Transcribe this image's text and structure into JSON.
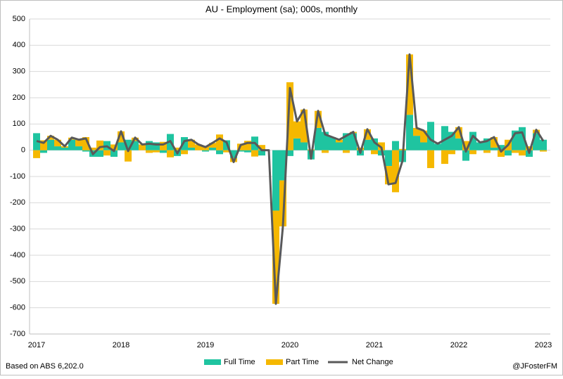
{
  "chart_data": {
    "type": "bar_line",
    "title": "AU - Employment (sa); 000s, monthly",
    "note_left": "Based on ABS 6,202.0",
    "note_right": "@JFosterFM",
    "categories": [
      "2017",
      null,
      null,
      null,
      null,
      null,
      null,
      null,
      null,
      null,
      null,
      null,
      "2018",
      null,
      null,
      null,
      null,
      null,
      null,
      null,
      null,
      null,
      null,
      null,
      "2019",
      null,
      null,
      null,
      null,
      null,
      null,
      null,
      null,
      null,
      null,
      null,
      "2020",
      null,
      null,
      null,
      null,
      null,
      null,
      null,
      null,
      null,
      null,
      null,
      "2021",
      null,
      null,
      null,
      null,
      null,
      null,
      null,
      null,
      null,
      null,
      null,
      "2022",
      null,
      null,
      null,
      null,
      null,
      null,
      null,
      null,
      null,
      null,
      null,
      "2023"
    ],
    "series": [
      {
        "name": "Full Time",
        "color": "#1fc4a0",
        "values": [
          65,
          -10,
          40,
          15,
          10,
          40,
          15,
          -5,
          -25,
          -25,
          35,
          -25,
          30,
          40,
          35,
          0,
          35,
          30,
          -10,
          62,
          -22,
          50,
          10,
          0,
          -5,
          10,
          -15,
          38,
          -30,
          -5,
          -8,
          52,
          -20,
          0,
          -230,
          -115,
          -22,
          45,
          30,
          -35,
          85,
          70,
          50,
          30,
          65,
          65,
          -20,
          40,
          45,
          -20,
          -60,
          35,
          -45,
          135,
          55,
          30,
          108,
          25,
          92,
          70,
          45,
          -40,
          70,
          30,
          45,
          10,
          20,
          -20,
          75,
          88,
          -25,
          65,
          40
        ]
      },
      {
        "name": "Part Time",
        "color": "#f5b800",
        "values": [
          -30,
          38,
          15,
          25,
          5,
          8,
          25,
          50,
          10,
          37,
          -20,
          22,
          42,
          -43,
          13,
          22,
          -10,
          -8,
          32,
          -27,
          10,
          -15,
          30,
          22,
          17,
          18,
          60,
          -8,
          -15,
          25,
          36,
          -24,
          20,
          0,
          -355,
          -175,
          259,
          65,
          125,
          3,
          65,
          -10,
          0,
          10,
          -10,
          5,
          10,
          40,
          -15,
          30,
          -70,
          -160,
          5,
          230,
          30,
          45,
          -68,
          0,
          -52,
          -15,
          43,
          35,
          -15,
          0,
          -10,
          40,
          -25,
          40,
          -10,
          -20,
          15,
          13,
          -5
        ]
      },
      {
        "name": "Net Change",
        "color": "#595959",
        "type": "line",
        "values": [
          35,
          28,
          55,
          40,
          15,
          48,
          40,
          45,
          -15,
          12,
          15,
          -3,
          72,
          -3,
          48,
          22,
          25,
          22,
          22,
          35,
          -12,
          35,
          40,
          22,
          12,
          28,
          45,
          30,
          -45,
          20,
          28,
          28,
          0,
          0,
          -585,
          -290,
          237,
          110,
          155,
          -32,
          150,
          60,
          50,
          40,
          55,
          70,
          -10,
          80,
          30,
          10,
          -130,
          -125,
          -40,
          365,
          85,
          75,
          40,
          25,
          40,
          55,
          88,
          -5,
          55,
          30,
          35,
          50,
          -5,
          20,
          65,
          68,
          -10,
          78,
          35
        ]
      }
    ],
    "ylim": [
      -700,
      500
    ],
    "yticks": [
      -700,
      -600,
      -500,
      -400,
      -300,
      -200,
      -100,
      0,
      100,
      200,
      300,
      400,
      500
    ],
    "grid": true
  }
}
